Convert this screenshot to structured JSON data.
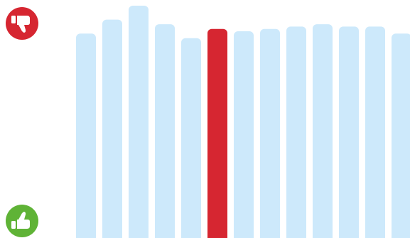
{
  "colors": {
    "bar_default": "#cde9fb",
    "bar_highlight": "#d62631",
    "thumbs_down": "#d62631",
    "thumbs_up": "#5fb336",
    "icon_glyph": "#ffffff"
  },
  "icons": {
    "top": "thumbs-down-icon",
    "bottom": "thumbs-up-icon"
  },
  "chart_data": {
    "type": "bar",
    "categories": [
      "",
      "",
      "",
      "",
      "",
      "",
      "",
      "",
      "",
      "",
      "",
      "",
      ""
    ],
    "values": [
      88,
      94,
      100,
      92,
      86,
      90,
      89,
      90,
      91,
      92,
      91,
      91,
      88
    ],
    "highlight_index": 5,
    "ylim": [
      0,
      100
    ],
    "axes_visible": false,
    "grid": false,
    "legend": "none"
  }
}
